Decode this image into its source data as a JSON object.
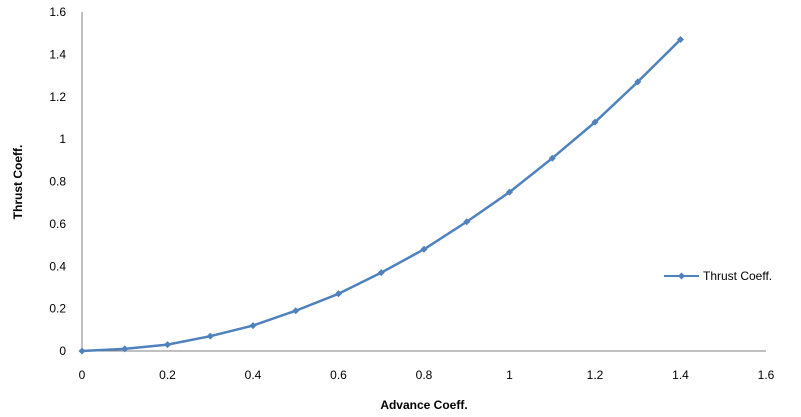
{
  "chart_data": {
    "type": "line",
    "title": "",
    "xlabel": "Advance Coeff.",
    "ylabel": "Thrust Coeff.",
    "xlim": [
      0,
      1.6
    ],
    "ylim": [
      0,
      1.6
    ],
    "x_ticks": [
      "0",
      "0.2",
      "0.4",
      "0.6",
      "0.8",
      "1",
      "1.2",
      "1.4",
      "1.6"
    ],
    "y_ticks": [
      "0",
      "0.2",
      "0.4",
      "0.6",
      "0.8",
      "1",
      "1.2",
      "1.4",
      "1.6"
    ],
    "grid": false,
    "legend_position": "right",
    "series": [
      {
        "name": "Thrust Coeff.",
        "color": "#4f81bd",
        "marker": "diamond",
        "x": [
          0,
          0.1,
          0.2,
          0.3,
          0.4,
          0.5,
          0.6,
          0.7,
          0.8,
          0.9,
          1.0,
          1.1,
          1.2,
          1.3,
          1.4
        ],
        "y": [
          0,
          0.01,
          0.03,
          0.07,
          0.12,
          0.19,
          0.27,
          0.37,
          0.48,
          0.61,
          0.75,
          0.91,
          1.08,
          1.27,
          1.47
        ]
      }
    ]
  }
}
